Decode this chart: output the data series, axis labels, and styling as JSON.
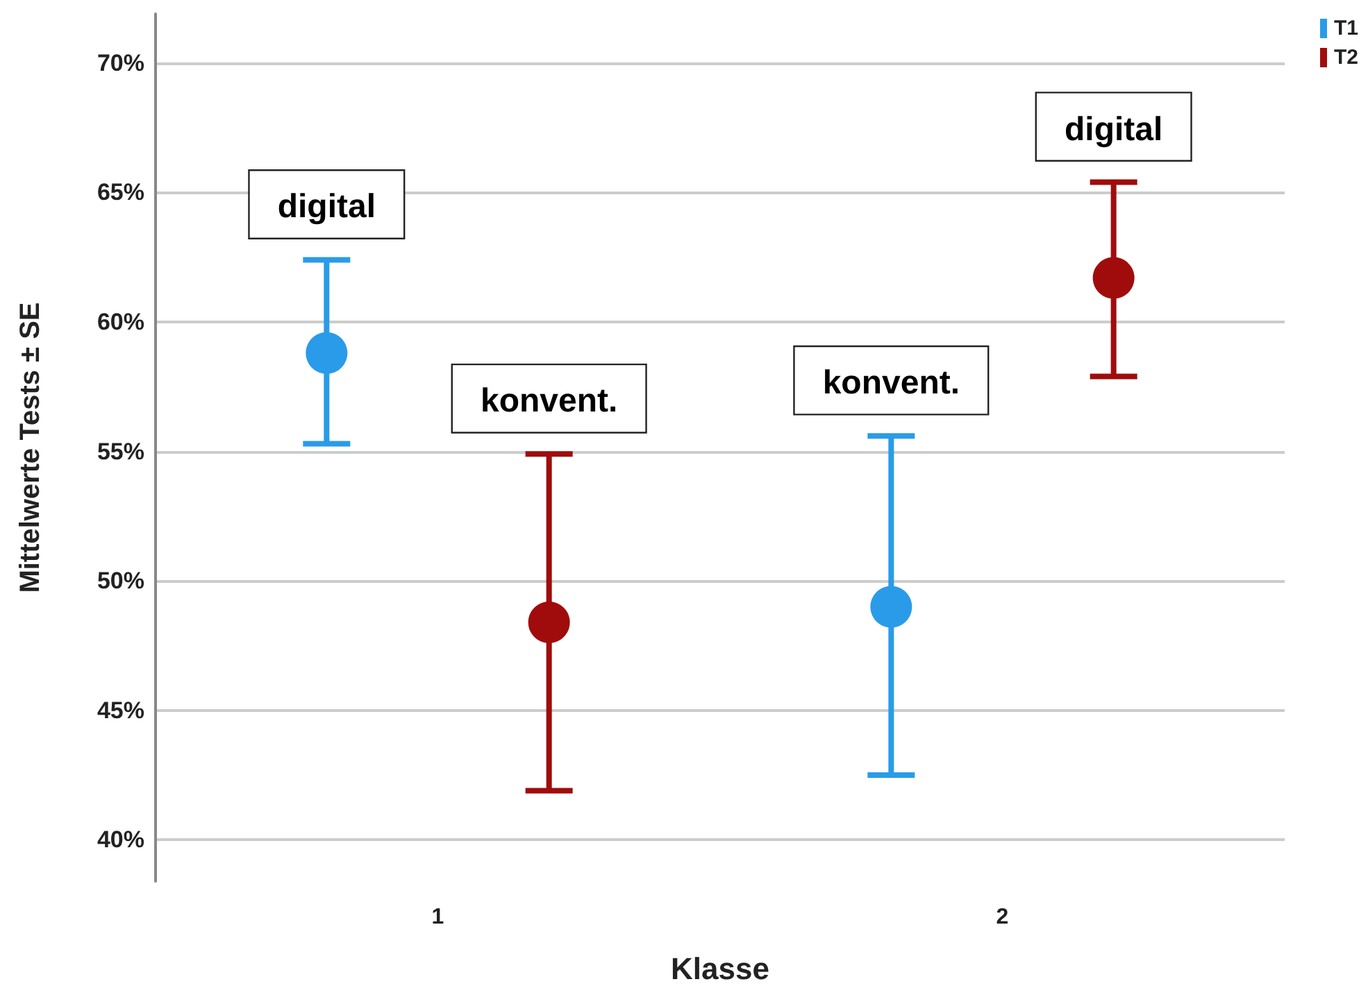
{
  "chart_data": {
    "type": "scatter",
    "xlabel": "Klasse",
    "ylabel": "Mittelwerte Tests ± SE",
    "categories": [
      "1",
      "2"
    ],
    "series": [
      {
        "name": "T1",
        "color": "#2a9be8",
        "values": [
          58.8,
          49.0
        ],
        "errors": [
          [
            55.3,
            62.4
          ],
          [
            42.5,
            55.6
          ]
        ]
      },
      {
        "name": "T2",
        "color": "#a00c0c",
        "values": [
          48.4,
          61.7
        ],
        "errors": [
          [
            41.9,
            54.9
          ],
          [
            57.9,
            65.4
          ]
        ]
      }
    ],
    "ylim": [
      38.4,
      71.9
    ],
    "yticks": [
      {
        "value": 40,
        "label": "40%"
      },
      {
        "value": 45,
        "label": "45%"
      },
      {
        "value": 50,
        "label": "50%"
      },
      {
        "value": 55,
        "label": "55%"
      },
      {
        "value": 60,
        "label": "60%"
      },
      {
        "value": 65,
        "label": "65%"
      },
      {
        "value": 70,
        "label": "70%"
      }
    ],
    "grid": "y",
    "legend": "top right",
    "marker": "circle",
    "annotations": [
      "digital",
      "konvent.",
      "konvent.",
      "digital"
    ]
  }
}
